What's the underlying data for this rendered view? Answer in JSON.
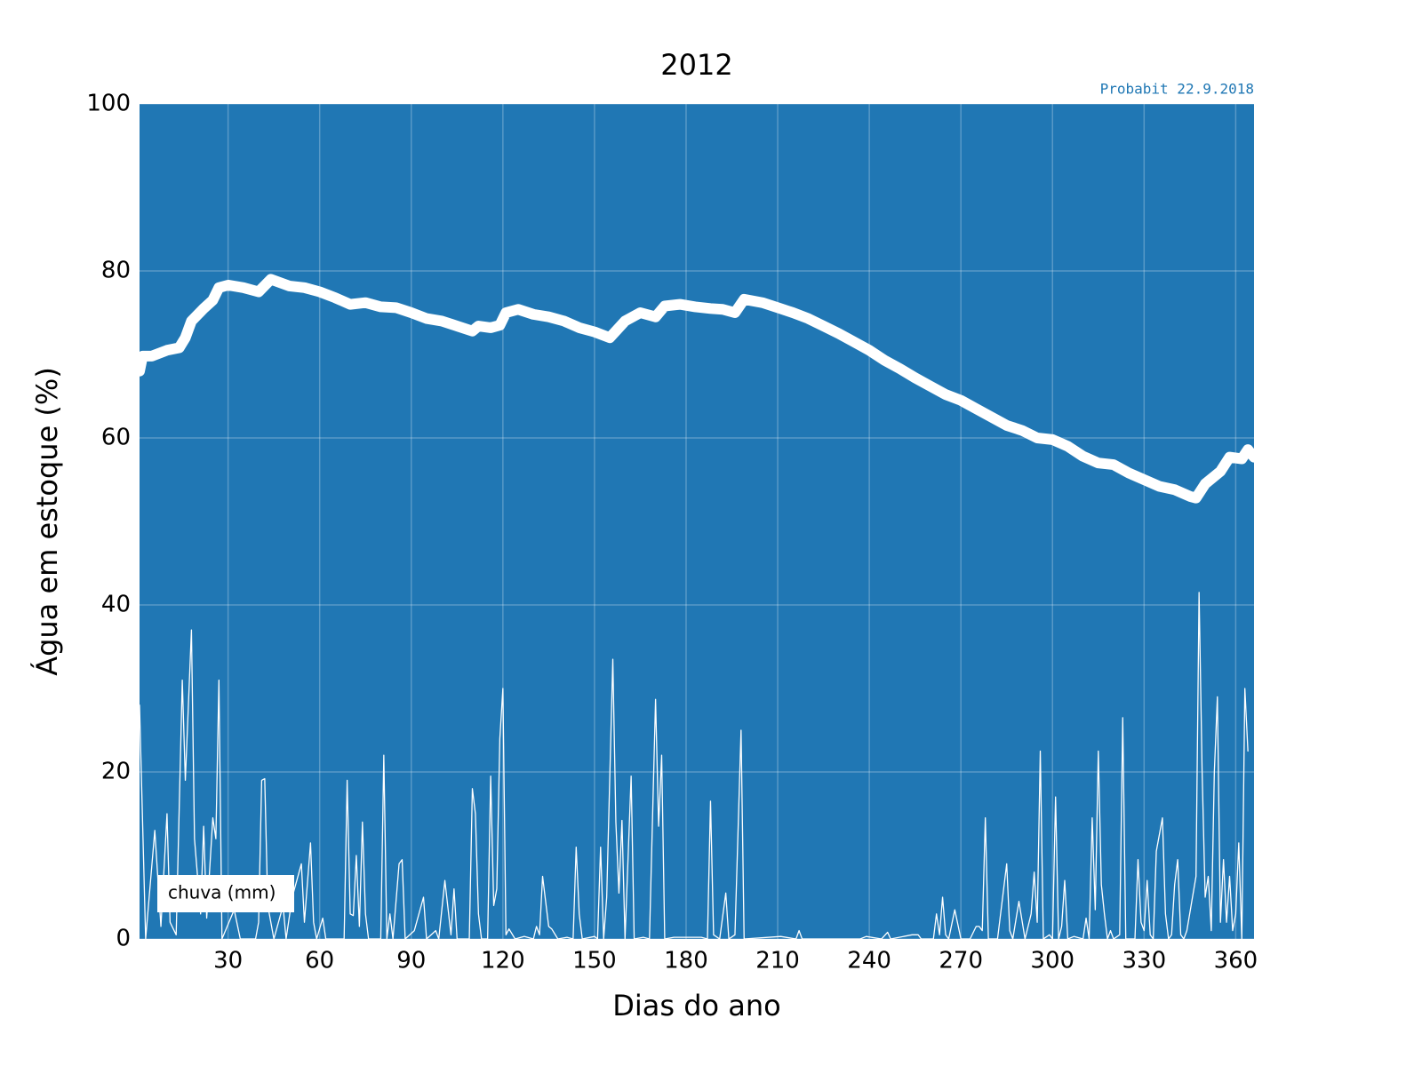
{
  "chart_data": {
    "type": "line",
    "title": "2012",
    "annotation": "Probabit 22.9.2018",
    "xlabel": "Dias do ano",
    "ylabel": "Água em estoque (%)",
    "xlim": [
      1,
      366
    ],
    "ylim": [
      0,
      100
    ],
    "xticks": [
      30,
      60,
      90,
      120,
      150,
      180,
      210,
      240,
      270,
      300,
      330,
      360
    ],
    "yticks": [
      0,
      20,
      40,
      60,
      80,
      100
    ],
    "grid": true,
    "facecolor": "#2077b4",
    "legend": "lower left",
    "series": [
      {
        "color": "#ffffff",
        "x": [
          1,
          2,
          5,
          10,
          14,
          16,
          18,
          22,
          25,
          27,
          30,
          35,
          40,
          44,
          50,
          55,
          60,
          65,
          70,
          75,
          80,
          85,
          90,
          95,
          100,
          105,
          110,
          112,
          116,
          119,
          121,
          125,
          130,
          135,
          140,
          145,
          150,
          155,
          160,
          165,
          170,
          173,
          178,
          183,
          188,
          192,
          196,
          199,
          205,
          210,
          215,
          220,
          225,
          230,
          235,
          240,
          245,
          250,
          255,
          260,
          265,
          270,
          275,
          280,
          285,
          290,
          295,
          300,
          305,
          310,
          315,
          320,
          325,
          330,
          335,
          340,
          345,
          347,
          350,
          355,
          358,
          362,
          364,
          366
        ],
        "values": [
          68,
          69.8,
          69.8,
          70.5,
          70.8,
          72,
          74,
          75.5,
          76.5,
          78,
          78.3,
          78,
          77.5,
          79,
          78.2,
          78,
          77.5,
          76.8,
          76,
          76.2,
          75.7,
          75.6,
          75,
          74.3,
          74,
          73.4,
          72.8,
          73.4,
          73.2,
          73.5,
          75,
          75.4,
          74.8,
          74.5,
          74,
          73.2,
          72.7,
          72,
          74,
          75,
          74.5,
          75.8,
          76,
          75.7,
          75.5,
          75.4,
          75,
          76.6,
          76.2,
          75.6,
          75,
          74.3,
          73.4,
          72.5,
          71.5,
          70.5,
          69.3,
          68.3,
          67.2,
          66.2,
          65.2,
          64.5,
          63.5,
          62.5,
          61.5,
          60.9,
          60,
          59.8,
          59,
          57.8,
          57,
          56.8,
          55.8,
          55,
          54.2,
          53.8,
          53,
          52.8,
          54.5,
          56,
          57.7,
          57.5,
          58.6,
          57.7
        ]
      },
      {
        "name": "chuva (mm)",
        "color": "#ffffff",
        "x": [
          1,
          3,
          6,
          8,
          10,
          11,
          13,
          15,
          16,
          18,
          19,
          21,
          22,
          23,
          25,
          26,
          27,
          28,
          32,
          34,
          39,
          40,
          41,
          42,
          43,
          45,
          48,
          49,
          51,
          54,
          55,
          57,
          58,
          59,
          61,
          62,
          68,
          69,
          70,
          71,
          72,
          73,
          74,
          75,
          76,
          80,
          81,
          82,
          83,
          84,
          86,
          87,
          88,
          91,
          94,
          95,
          98,
          99,
          101,
          103,
          104,
          105,
          109,
          110,
          111,
          112,
          113,
          115,
          116,
          117,
          118,
          119,
          120,
          121,
          122,
          124,
          127,
          130,
          131,
          132,
          133,
          135,
          136,
          138,
          141,
          143,
          144,
          145,
          146,
          150,
          151,
          152,
          153,
          154,
          156,
          157,
          158,
          159,
          160,
          162,
          163,
          166,
          168,
          170,
          171,
          172,
          173,
          176,
          185,
          187,
          188,
          189,
          191,
          193,
          194,
          196,
          198,
          199,
          211,
          216,
          217,
          218,
          237,
          239,
          244,
          246,
          247,
          254,
          256,
          257,
          261,
          262,
          263,
          264,
          265,
          266,
          268,
          270,
          273,
          275,
          276,
          277,
          278,
          279,
          282,
          284,
          285,
          286,
          287,
          289,
          291,
          293,
          294,
          295,
          296,
          297,
          299,
          300,
          301,
          302,
          303,
          304,
          305,
          307,
          310,
          311,
          312,
          313,
          314,
          315,
          316,
          317,
          318,
          319,
          320,
          322,
          323,
          324,
          327,
          328,
          329,
          330,
          331,
          332,
          333,
          334,
          336,
          337,
          338,
          339,
          340,
          341,
          342,
          343,
          344,
          347,
          348,
          349,
          350,
          351,
          352,
          353,
          354,
          355,
          356,
          357,
          358,
          359,
          360,
          361,
          362,
          363,
          364
        ],
        "values": [
          28,
          0,
          13,
          1.5,
          15,
          2,
          0.5,
          31,
          19,
          37,
          12,
          3,
          13.5,
          2.5,
          14.5,
          12,
          31,
          0,
          3.5,
          0,
          0,
          2,
          19,
          19.2,
          4,
          0,
          4,
          0,
          5,
          9,
          2,
          11.5,
          2,
          0,
          2.5,
          0,
          0,
          19,
          3,
          2.8,
          10,
          1.5,
          14,
          3,
          0,
          0,
          22,
          0,
          3,
          0,
          9,
          9.5,
          0,
          1,
          5,
          0,
          1,
          0,
          7,
          0.5,
          6,
          0,
          0,
          18,
          15,
          3,
          0,
          0,
          19.5,
          4,
          6,
          24,
          30,
          0.5,
          1.2,
          0,
          0.3,
          0,
          1.5,
          0.5,
          7.5,
          1.5,
          1.2,
          0,
          0.2,
          0,
          11,
          3,
          0,
          0.3,
          0,
          11,
          0,
          5,
          33.5,
          14,
          5.5,
          14.2,
          0,
          19.5,
          0,
          0.2,
          0,
          28.7,
          13.5,
          22,
          0,
          0.2,
          0.2,
          0,
          16.5,
          0.5,
          0,
          5.5,
          0,
          0.5,
          25,
          0,
          0.3,
          0,
          1,
          0,
          0,
          0.3,
          0,
          0.8,
          0,
          0.5,
          0.5,
          0,
          0,
          3,
          0.5,
          5,
          0.5,
          0,
          3.5,
          0,
          0,
          1.5,
          1.5,
          1,
          14.5,
          0,
          0,
          6,
          9,
          1,
          0,
          4.5,
          0,
          3,
          8,
          2,
          22.5,
          0,
          0.5,
          0,
          17,
          0,
          1.5,
          7,
          0,
          0.3,
          0,
          2.5,
          0,
          14.5,
          3.5,
          22.5,
          6.5,
          3,
          0,
          1,
          0,
          0.5,
          26.5,
          0,
          0,
          9.5,
          2,
          1,
          7,
          0.5,
          0,
          10.5,
          14.5,
          3,
          0,
          0.5,
          6.5,
          9.5,
          0.5,
          0,
          1,
          7.5,
          41.5,
          20,
          5,
          7.5,
          1,
          20,
          29,
          2,
          9.5,
          2,
          7.5,
          1,
          3,
          11.5,
          0,
          30,
          22.5
        ]
      }
    ]
  }
}
